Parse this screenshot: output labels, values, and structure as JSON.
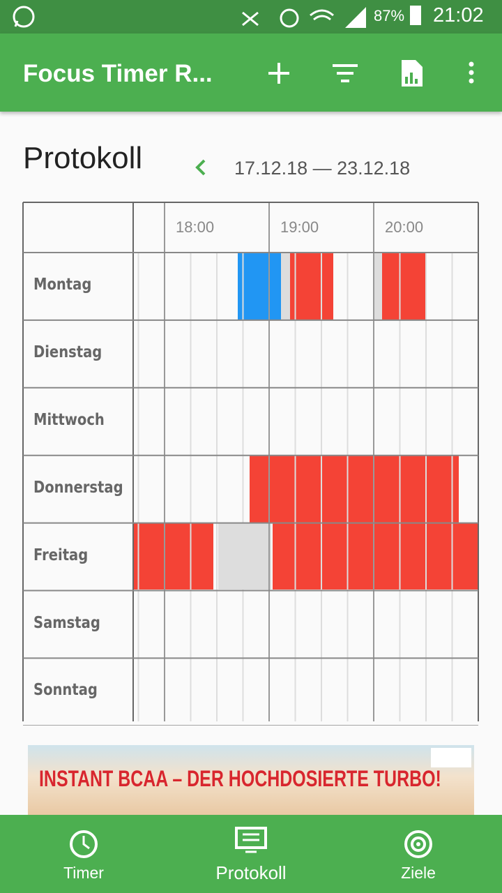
{
  "status_bar": {
    "battery": "87%",
    "time": "21:02"
  },
  "app_bar": {
    "title": "Focus Timer R..."
  },
  "protocol": {
    "heading": "Protokoll",
    "date_range": "17.12.18 — 23.12.18",
    "times": [
      "18:00",
      "19:00",
      "20:00"
    ],
    "days": [
      "Montag",
      "Dienstag",
      "Mittwoch",
      "Donnerstag",
      "Freitag",
      "Samstag",
      "Sonntag"
    ]
  },
  "ad": {
    "text": "INSTANT BCAA – DER HOCHDOSIERTE TURBO!"
  },
  "bottom_nav": {
    "items": [
      "Timer",
      "Protokoll",
      "Ziele"
    ]
  }
}
